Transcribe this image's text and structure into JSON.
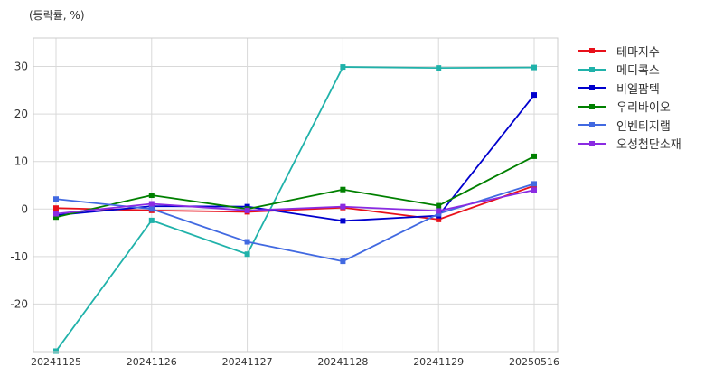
{
  "unit_label": "(등락률, %)",
  "chart_data": {
    "type": "line",
    "categories": [
      "20241125",
      "20241126",
      "20241127",
      "20241128",
      "20241129",
      "20250516"
    ],
    "ylim": [
      -30,
      36
    ],
    "yticks": [
      -20,
      -10,
      0,
      10,
      20,
      30
    ],
    "grid": true,
    "legend_position": "outside-top-right",
    "series": [
      {
        "name": "테마지수",
        "color": "#e8101a",
        "values": [
          0.2,
          -0.3,
          -0.6,
          0.3,
          -2.2,
          4.9
        ]
      },
      {
        "name": "메디콕스",
        "color": "#20b2aa",
        "values": [
          -29.9,
          -2.4,
          -9.5,
          29.9,
          29.7,
          29.8
        ]
      },
      {
        "name": "비엘팜텍",
        "color": "#0000cd",
        "values": [
          -1.3,
          0.6,
          0.5,
          -2.5,
          -1.4,
          24.0
        ]
      },
      {
        "name": "우리바이오",
        "color": "#008000",
        "values": [
          -1.7,
          2.9,
          0.0,
          4.1,
          0.7,
          11.1
        ]
      },
      {
        "name": "인벤티지랩",
        "color": "#4169e1",
        "values": [
          2.1,
          0.0,
          -6.9,
          -11.0,
          -1.0,
          5.3
        ]
      },
      {
        "name": "오성첨단소재",
        "color": "#8a2be2",
        "values": [
          -1.0,
          1.1,
          -0.3,
          0.5,
          -0.4,
          4.0
        ]
      }
    ]
  }
}
